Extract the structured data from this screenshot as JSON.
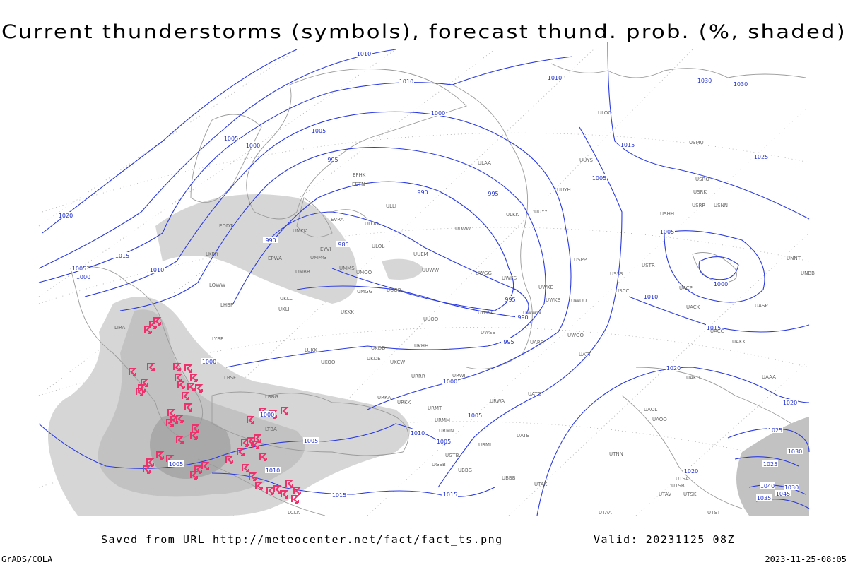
{
  "title": "Current thunderstorms (symbols), forecast thund. prob. (%, shaded)",
  "footer": {
    "source": "Saved from URL http://meteocenter.net/fact/fact_ts.png",
    "valid": "Valid: 20231125 08Z",
    "credit": "GrADS/COLA",
    "timestamp": "2023-11-25-08:05"
  },
  "isobar_labels": [
    1010,
    1010,
    1010,
    1030,
    1030,
    1000,
    1005,
    1005,
    1000,
    1015,
    1025,
    995,
    1005,
    990,
    995,
    1020,
    1005,
    990,
    985,
    1015,
    1005,
    1010,
    1000,
    1000,
    995,
    1010,
    990,
    1015,
    995,
    1000,
    1020,
    1000,
    1000,
    1005,
    1020,
    1025,
    1010,
    1005,
    1005,
    1030,
    1005,
    1010,
    1025,
    1020,
    1015,
    1015,
    1040,
    1030,
    1045,
    1035
  ],
  "station_labels": [
    "ULAA",
    "UUYY",
    "ULKK",
    "ULWW",
    "UUEM",
    "UUWW",
    "ULOL",
    "ULOO",
    "UMKK",
    "EVRA",
    "EYVI",
    "UMMG",
    "UMMS",
    "UMOO",
    "UMGG",
    "UUOB",
    "UKKK",
    "UUOO",
    "UWPP",
    "UWGG",
    "UWKS",
    "UWKE",
    "UWKB",
    "UWUU",
    "UWWW",
    "UWSS",
    "UARR",
    "UWOO",
    "UATT",
    "USCC",
    "USSS",
    "USTR",
    "UACP",
    "UACK",
    "UASP",
    "UNBB",
    "UNNT",
    "USHH",
    "USRR",
    "USNN",
    "USRK",
    "USRO",
    "USMU",
    "ULOO",
    "UUYS",
    "UUYH",
    "USPP",
    "UACC",
    "UAKK",
    "UAKD",
    "UAAA",
    "UATG",
    "URWA",
    "URMT",
    "URMM",
    "URMN",
    "URML",
    "UATE",
    "UBBB",
    "UTAK",
    "UGTB",
    "UBBG",
    "UGSB",
    "UTNN",
    "UAOL",
    "UAOO",
    "UTSA",
    "UTSB",
    "UTAV",
    "UTSK",
    "UTST",
    "UTAA",
    "UKDD",
    "UKCW",
    "URRR",
    "URWI",
    "UKDE",
    "UKOO",
    "LUKK",
    "URKK",
    "URKA",
    "UKHH",
    "LBBG",
    "LBSF",
    "LYBE",
    "LIRA",
    "LHBP",
    "UKLL",
    "UKLI",
    "LKPR",
    "EPWA",
    "UMBB",
    "EDDT",
    "EETN",
    "EFHK",
    "LOWW",
    "ULLI",
    "LTBA",
    "LCLK"
  ]
}
